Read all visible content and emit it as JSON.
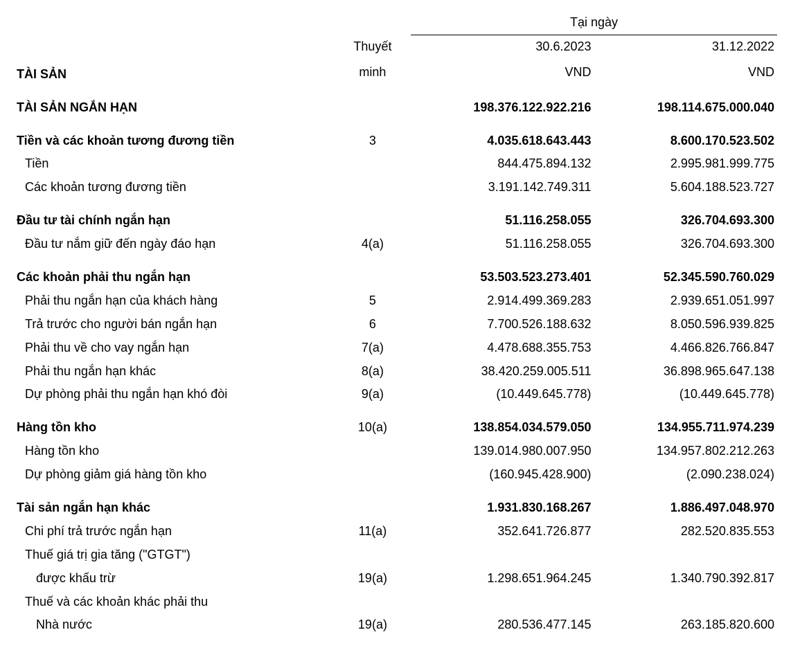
{
  "header": {
    "col1_line1": "",
    "col1_line2": "TÀI SẢN",
    "note_line1": "Thuyết",
    "note_line2": "minh",
    "date_header": "Tại ngày",
    "d1_line1": "30.6.2023",
    "d1_line2": "VND",
    "d2_line1": "31.12.2022",
    "d2_line2": "VND"
  },
  "rows": [
    {
      "label": "TÀI SẢN NGẮN HẠN",
      "note": "",
      "d1": "198.376.122.922.216",
      "d2": "198.114.675.000.040",
      "bold": true,
      "indent": 0
    },
    {
      "spacer": true
    },
    {
      "label": "Tiền và các khoản tương đương tiền",
      "note": "3",
      "d1": "4.035.618.643.443",
      "d2": "8.600.170.523.502",
      "bold": true,
      "indent": 0
    },
    {
      "label": "Tiền",
      "note": "",
      "d1": "844.475.894.132",
      "d2": "2.995.981.999.775",
      "bold": false,
      "indent": 1
    },
    {
      "label": "Các khoản tương đương tiền",
      "note": "",
      "d1": "3.191.142.749.311",
      "d2": "5.604.188.523.727",
      "bold": false,
      "indent": 1
    },
    {
      "spacer": true
    },
    {
      "label": "Đầu tư tài chính ngắn hạn",
      "note": "",
      "d1": "51.116.258.055",
      "d2": "326.704.693.300",
      "bold": true,
      "indent": 0
    },
    {
      "label": "Đầu tư nắm giữ đến ngày đáo hạn",
      "note": "4(a)",
      "d1": "51.116.258.055",
      "d2": "326.704.693.300",
      "bold": false,
      "indent": 1
    },
    {
      "spacer": true
    },
    {
      "label": "Các khoản phải thu ngắn hạn",
      "note": "",
      "d1": "53.503.523.273.401",
      "d2": "52.345.590.760.029",
      "bold": true,
      "indent": 0
    },
    {
      "label": "Phải thu ngắn hạn của khách hàng",
      "note": "5",
      "d1": "2.914.499.369.283",
      "d2": "2.939.651.051.997",
      "bold": false,
      "indent": 1
    },
    {
      "label": "Trả trước cho người bán ngắn hạn",
      "note": "6",
      "d1": "7.700.526.188.632",
      "d2": "8.050.596.939.825",
      "bold": false,
      "indent": 1
    },
    {
      "label": "Phải thu về cho vay ngắn hạn",
      "note": "7(a)",
      "d1": "4.478.688.355.753",
      "d2": "4.466.826.766.847",
      "bold": false,
      "indent": 1
    },
    {
      "label": "Phải thu ngắn hạn khác",
      "note": "8(a)",
      "d1": "38.420.259.005.511",
      "d2": "36.898.965.647.138",
      "bold": false,
      "indent": 1
    },
    {
      "label": "Dự phòng phải thu ngắn hạn khó đòi",
      "note": "9(a)",
      "d1": "(10.449.645.778)",
      "d2": "(10.449.645.778)",
      "bold": false,
      "indent": 1
    },
    {
      "spacer": true
    },
    {
      "label": "Hàng tồn kho",
      "note": "10(a)",
      "d1": "138.854.034.579.050",
      "d2": "134.955.711.974.239",
      "bold": true,
      "indent": 0
    },
    {
      "label": "Hàng tồn kho",
      "note": "",
      "d1": "139.014.980.007.950",
      "d2": "134.957.802.212.263",
      "bold": false,
      "indent": 1
    },
    {
      "label": "Dự phòng giảm giá hàng tồn kho",
      "note": "",
      "d1": "(160.945.428.900)",
      "d2": "(2.090.238.024)",
      "bold": false,
      "indent": 1
    },
    {
      "spacer": true
    },
    {
      "label": "Tài sản ngắn hạn khác",
      "note": "",
      "d1": "1.931.830.168.267",
      "d2": "1.886.497.048.970",
      "bold": true,
      "indent": 0
    },
    {
      "label": "Chi phí trả trước ngắn hạn",
      "note": "11(a)",
      "d1": "352.641.726.877",
      "d2": "282.520.835.553",
      "bold": false,
      "indent": 1
    },
    {
      "label": "Thuế giá trị gia tăng (\"GTGT\")",
      "note": "",
      "d1": "",
      "d2": "",
      "bold": false,
      "indent": 1
    },
    {
      "label": "được khấu trừ",
      "note": "19(a)",
      "d1": "1.298.651.964.245",
      "d2": "1.340.790.392.817",
      "bold": false,
      "indent": 2
    },
    {
      "label": "Thuế và các khoản khác phải thu",
      "note": "",
      "d1": "",
      "d2": "",
      "bold": false,
      "indent": 1
    },
    {
      "label": "Nhà nước",
      "note": "19(a)",
      "d1": "280.536.477.145",
      "d2": "263.185.820.600",
      "bold": false,
      "indent": 2
    }
  ],
  "style": {
    "font_size_pt": 14,
    "text_color": "#000000",
    "background_color": "#ffffff",
    "col_widths_pct": [
      42,
      10,
      24,
      24
    ]
  }
}
